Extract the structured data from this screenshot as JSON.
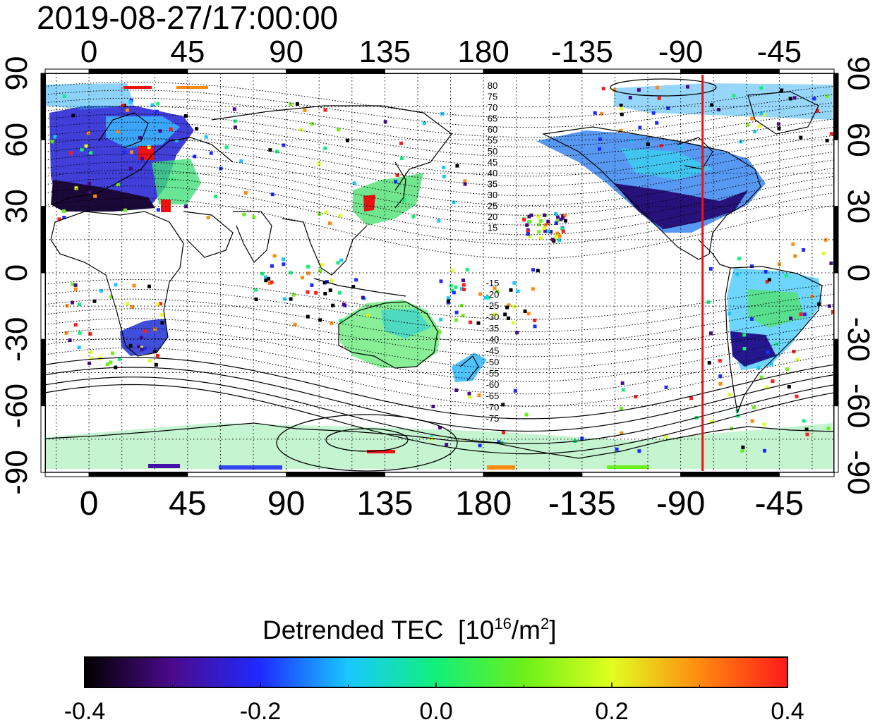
{
  "title": "2019-08-27/17:00:00",
  "map": {
    "lon_ticks_top": [
      "0",
      "45",
      "90",
      "135",
      "180",
      "-135",
      "-90",
      "-45"
    ],
    "lon_ticks_bottom": [
      "0",
      "45",
      "90",
      "135",
      "180",
      "-135",
      "-90",
      "-45"
    ],
    "lat_ticks_left": [
      "90",
      "60",
      "30",
      "0",
      "-30",
      "-60",
      "-90"
    ],
    "lat_ticks_right": [
      "90",
      "60",
      "30",
      "0",
      "-30",
      "-60",
      "-90"
    ],
    "contour_labels_north": [
      "80",
      "75",
      "70",
      "65",
      "60",
      "55",
      "50",
      "45",
      "40",
      "35",
      "30",
      "25",
      "20",
      "15"
    ],
    "contour_labels_south": [
      "-15",
      "-20",
      "-25",
      "-30",
      "-35",
      "-40",
      "-45",
      "-50",
      "-55",
      "-60",
      "-65",
      "-70",
      "-75"
    ],
    "marker_longitude": -80,
    "marker_color": "#ee1111"
  },
  "colorbar": {
    "title": "Detrended TEC",
    "unit_prefix": "[10",
    "unit_exp1": "16",
    "unit_mid": "/m",
    "unit_exp2": "2",
    "unit_suffix": "]",
    "tick_labels": [
      "-0.4",
      "-0.2",
      "0.0",
      "0.2",
      "0.4"
    ],
    "min": -0.4,
    "max": 0.4,
    "colors": [
      "#000000",
      "#4b0a8c",
      "#1e2bff",
      "#18c8ff",
      "#11f078",
      "#6cf01a",
      "#e0ff20",
      "#ff8a10",
      "#ff1a1a"
    ]
  }
}
